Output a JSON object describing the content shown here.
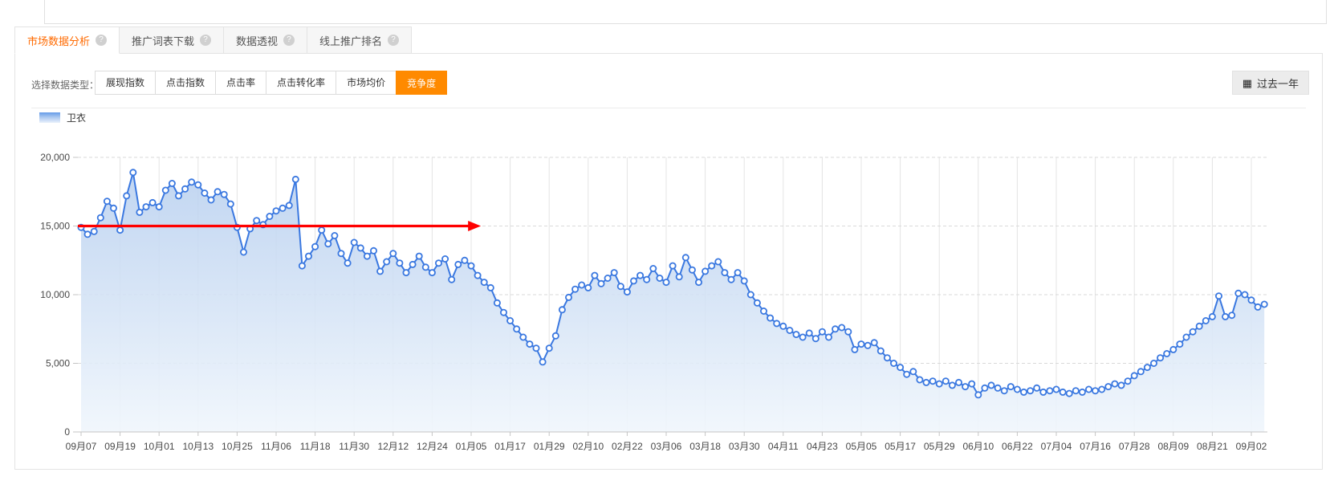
{
  "tabs": [
    {
      "label": "市场数据分析",
      "help_icon": "?",
      "active": true
    },
    {
      "label": "推广词表下载",
      "help_icon": "?",
      "active": false
    },
    {
      "label": "数据透视",
      "help_icon": "?",
      "active": false
    },
    {
      "label": "线上推广排名",
      "help_icon": "?",
      "active": false
    }
  ],
  "filters": {
    "label": "选择数据类型：",
    "options": [
      {
        "label": "展现指数",
        "active": false
      },
      {
        "label": "点击指数",
        "active": false
      },
      {
        "label": "点击率",
        "active": false
      },
      {
        "label": "点击转化率",
        "active": false
      },
      {
        "label": "市场均价",
        "active": false
      },
      {
        "label": "竞争度",
        "active": true
      }
    ],
    "date_range_button": {
      "label": "过去一年",
      "icon_glyph": "▦"
    }
  },
  "legend": {
    "series_label": "卫衣"
  },
  "colors": {
    "accent_orange": "#ff8a00",
    "tab_active_text": "#ff6a00",
    "line_blue": "#3a78e0",
    "arrow_red": "#ff0000"
  },
  "chart_data": {
    "type": "line",
    "title": "",
    "series_name": "卫衣",
    "legend_position": "top-left",
    "grid": true,
    "point_interval_days": 2,
    "x_tick_labels": [
      "09月07",
      "09月19",
      "10月01",
      "10月13",
      "10月25",
      "11月06",
      "11月18",
      "11月30",
      "12月12",
      "12月24",
      "01月05",
      "01月17",
      "01月29",
      "02月10",
      "02月22",
      "03月06",
      "03月18",
      "03月30",
      "04月11",
      "04月23",
      "05月05",
      "05月17",
      "05月29",
      "06月10",
      "06月22",
      "07月04",
      "07月16",
      "07月28",
      "08月09",
      "08月21",
      "09月02"
    ],
    "x_tick_interval_days": 12,
    "ylim": [
      0,
      20000
    ],
    "y_ticks": [
      0,
      5000,
      10000,
      15000,
      20000
    ],
    "y_tick_labels": [
      "0",
      "5,000",
      "10,000",
      "15,000",
      "20,000"
    ],
    "values": [
      14900,
      14400,
      14600,
      15600,
      16800,
      16300,
      14700,
      17200,
      18900,
      16000,
      16400,
      16700,
      16400,
      17600,
      18100,
      17200,
      17700,
      18200,
      18000,
      17400,
      16900,
      17500,
      17300,
      16600,
      14900,
      13100,
      14800,
      15400,
      15100,
      15700,
      16100,
      16300,
      16500,
      18400,
      12100,
      12800,
      13500,
      14700,
      13700,
      14300,
      13000,
      12300,
      13800,
      13400,
      12800,
      13200,
      11700,
      12400,
      13000,
      12300,
      11600,
      12200,
      12800,
      12000,
      11600,
      12300,
      12600,
      11100,
      12200,
      12500,
      12100,
      11400,
      10900,
      10500,
      9400,
      8700,
      8100,
      7500,
      6900,
      6400,
      6100,
      5100,
      6100,
      7000,
      8900,
      9800,
      10400,
      10700,
      10500,
      11400,
      10800,
      11200,
      11600,
      10600,
      10200,
      11000,
      11400,
      11100,
      11900,
      11200,
      10900,
      12100,
      11300,
      12700,
      11800,
      10900,
      11700,
      12100,
      12400,
      11600,
      11100,
      11600,
      11000,
      10000,
      9400,
      8800,
      8300,
      7900,
      7700,
      7400,
      7100,
      6900,
      7200,
      6800,
      7300,
      6900,
      7500,
      7600,
      7300,
      6000,
      6400,
      6300,
      6500,
      5900,
      5400,
      5000,
      4700,
      4200,
      4400,
      3800,
      3600,
      3700,
      3500,
      3700,
      3400,
      3600,
      3300,
      3500,
      2700,
      3200,
      3400,
      3200,
      3000,
      3300,
      3100,
      2900,
      3000,
      3200,
      2900,
      3000,
      3100,
      2900,
      2800,
      3000,
      2900,
      3100,
      3000,
      3100,
      3300,
      3500,
      3400,
      3700,
      4100,
      4400,
      4700,
      5000,
      5400,
      5700,
      6000,
      6400,
      6900,
      7300,
      7700,
      8100,
      8400,
      9900,
      8400,
      8500,
      10100,
      10000,
      9600,
      9100,
      9300
    ],
    "annotation": {
      "shape": "horizontal-arrow",
      "value": 15000,
      "from_day": 0,
      "to_day": 123,
      "color": "#ff0000"
    },
    "style": {
      "line": "#3a78e0",
      "marker_fill": "#ffffff",
      "area_top": "#b7cfef",
      "area_bottom": "#f0f6fc",
      "grid_v": "#e4e4e4",
      "grid_h": "#d9d9d9",
      "axis": "#c4c4c4",
      "label": "#484848"
    }
  }
}
